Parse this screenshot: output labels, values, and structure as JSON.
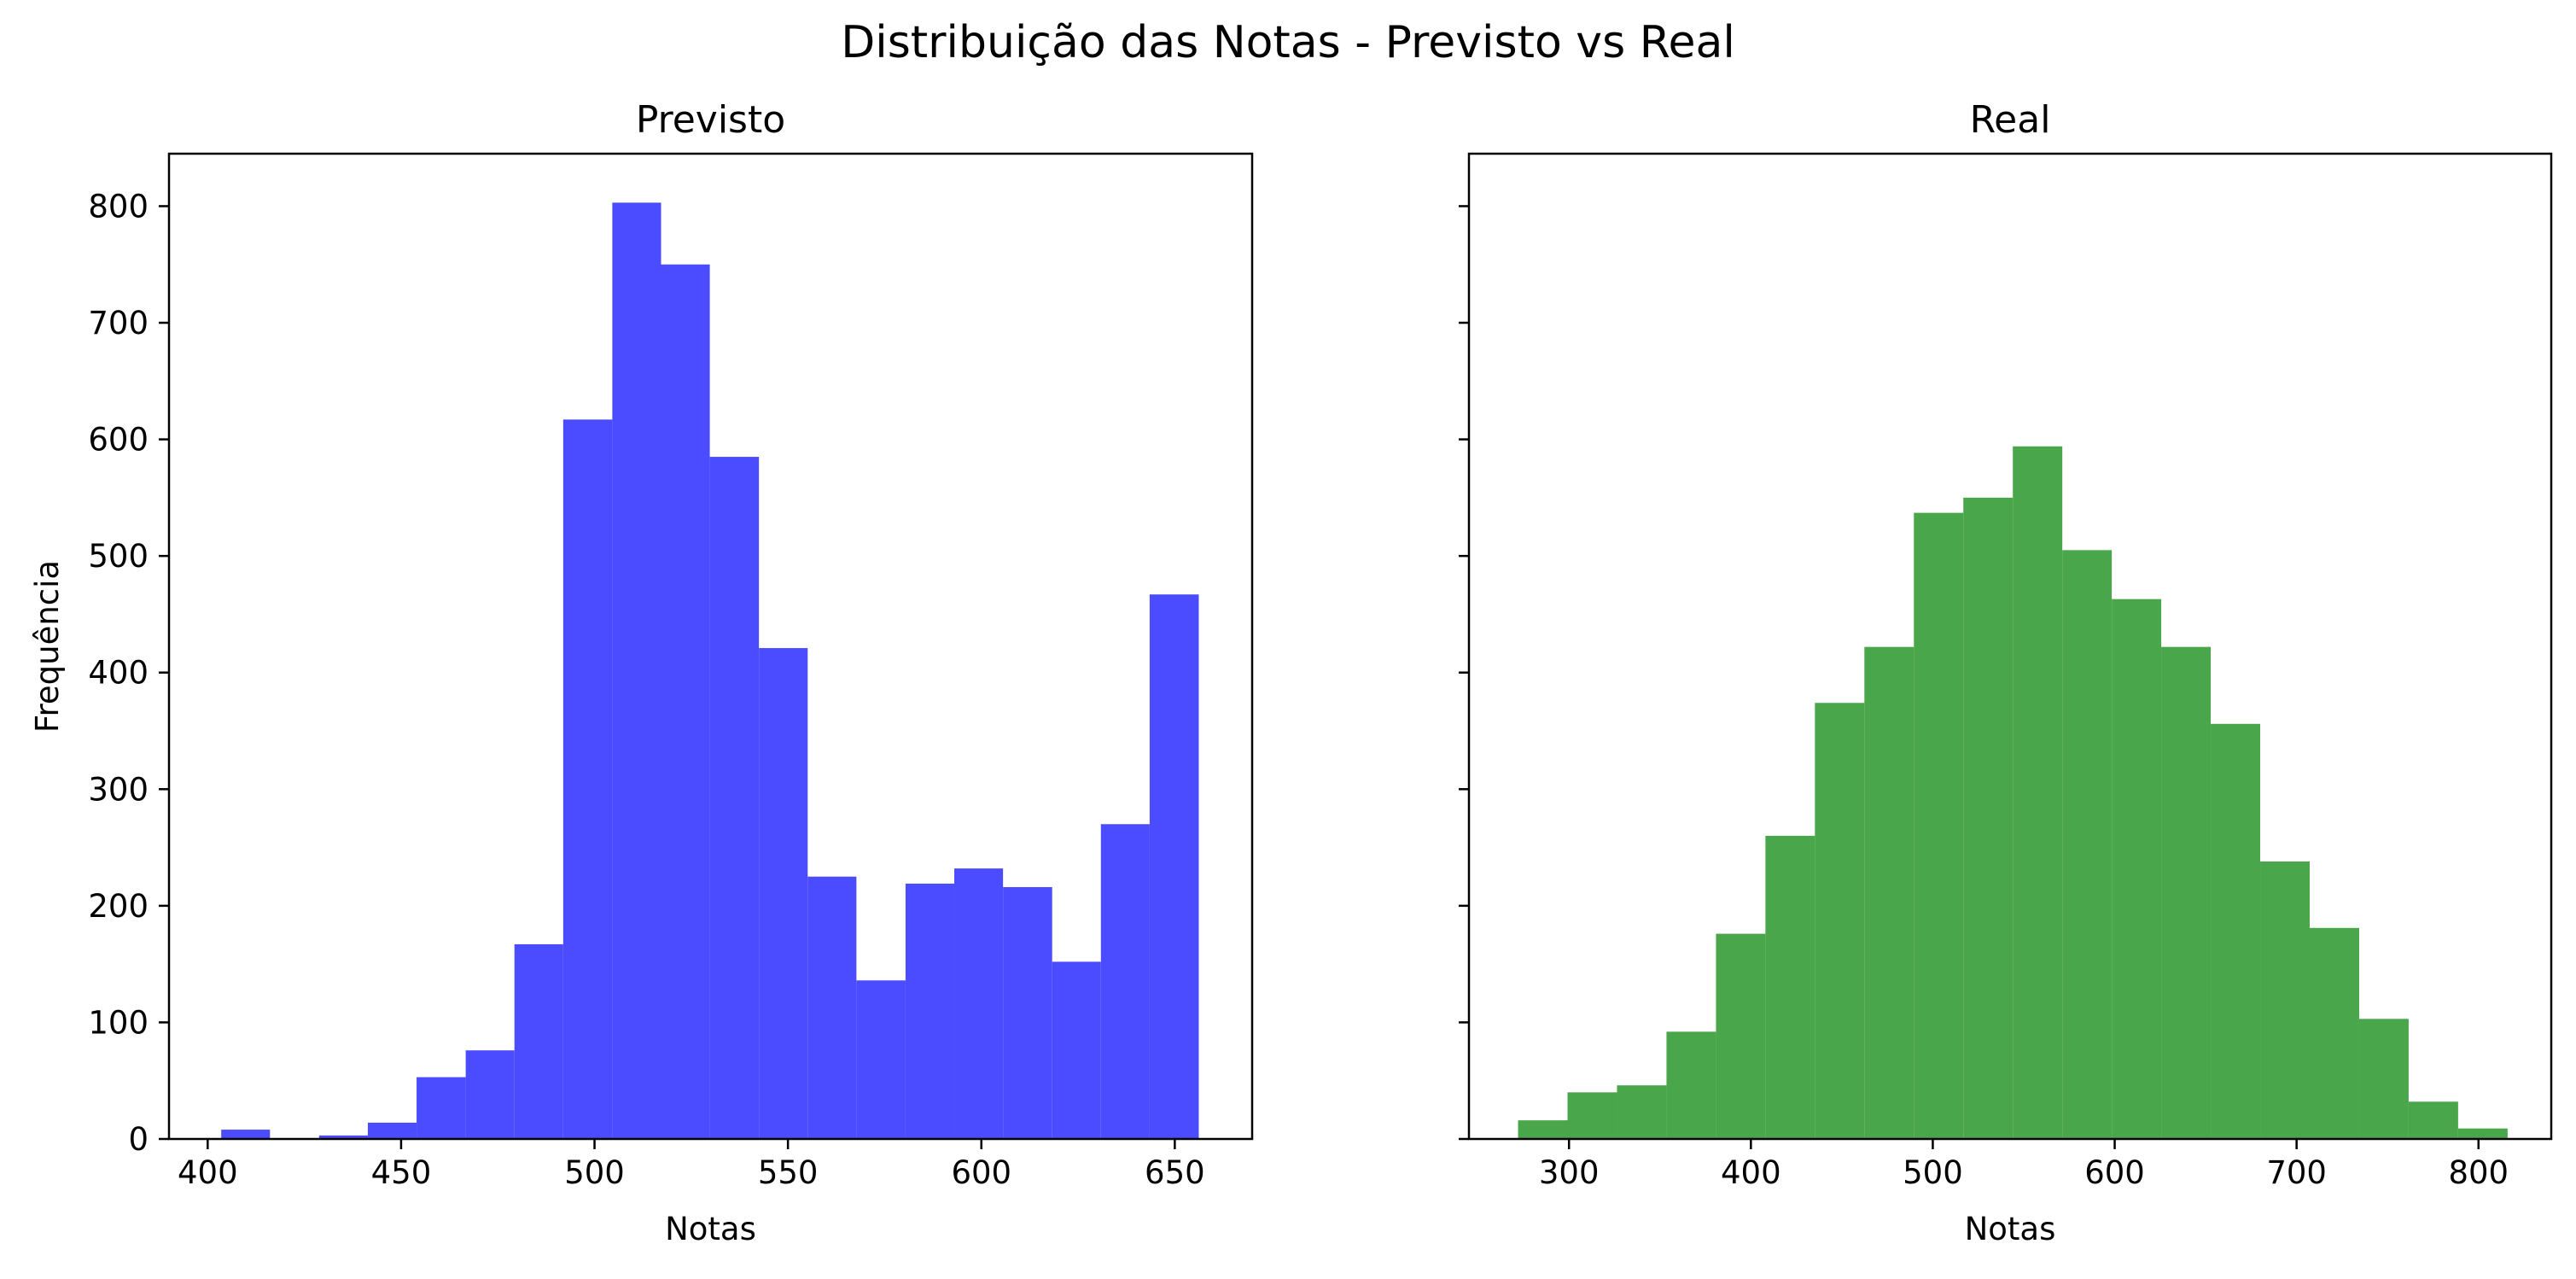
{
  "figure": {
    "title": "Distribuição das Notas - Previsto vs Real"
  },
  "chart_data": [
    {
      "type": "bar",
      "title": "Previsto",
      "xlabel": "Notas",
      "ylabel": "Frequência",
      "xlim": [
        390,
        670
      ],
      "ylim": [
        0,
        845
      ],
      "xticks": [
        400,
        450,
        500,
        550,
        600,
        650
      ],
      "yticks": [
        0,
        100,
        200,
        300,
        400,
        500,
        600,
        700,
        800
      ],
      "color": "#4b4bff",
      "bins": [
        {
          "x0": 403.5,
          "x1": 416.1,
          "value": 8
        },
        {
          "x0": 416.1,
          "x1": 428.8,
          "value": 0
        },
        {
          "x0": 428.8,
          "x1": 441.4,
          "value": 3
        },
        {
          "x0": 441.4,
          "x1": 454.0,
          "value": 14
        },
        {
          "x0": 454.0,
          "x1": 466.7,
          "value": 53
        },
        {
          "x0": 466.7,
          "x1": 479.3,
          "value": 76
        },
        {
          "x0": 479.3,
          "x1": 491.9,
          "value": 167
        },
        {
          "x0": 491.9,
          "x1": 504.6,
          "value": 617
        },
        {
          "x0": 504.6,
          "x1": 517.2,
          "value": 803
        },
        {
          "x0": 517.2,
          "x1": 529.8,
          "value": 750
        },
        {
          "x0": 529.8,
          "x1": 542.5,
          "value": 585
        },
        {
          "x0": 542.5,
          "x1": 555.1,
          "value": 421
        },
        {
          "x0": 555.1,
          "x1": 567.7,
          "value": 225
        },
        {
          "x0": 567.7,
          "x1": 580.4,
          "value": 136
        },
        {
          "x0": 580.4,
          "x1": 593.0,
          "value": 219
        },
        {
          "x0": 593.0,
          "x1": 605.6,
          "value": 232
        },
        {
          "x0": 605.6,
          "x1": 618.3,
          "value": 216
        },
        {
          "x0": 618.3,
          "x1": 630.9,
          "value": 152
        },
        {
          "x0": 630.9,
          "x1": 643.5,
          "value": 270
        },
        {
          "x0": 643.5,
          "x1": 656.2,
          "value": 467
        }
      ]
    },
    {
      "type": "bar",
      "title": "Real",
      "xlabel": "Notas",
      "ylabel": "",
      "xlim": [
        245,
        840
      ],
      "ylim": [
        0,
        845
      ],
      "xticks": [
        300,
        400,
        500,
        600,
        700,
        800
      ],
      "yticks": [
        0,
        100,
        200,
        300,
        400,
        500,
        600,
        700,
        800
      ],
      "color": "#4aa64a",
      "bins": [
        {
          "x0": 272.0,
          "x1": 299.2,
          "value": 16
        },
        {
          "x0": 299.2,
          "x1": 326.4,
          "value": 40
        },
        {
          "x0": 326.4,
          "x1": 353.6,
          "value": 46
        },
        {
          "x0": 353.6,
          "x1": 380.8,
          "value": 92
        },
        {
          "x0": 380.8,
          "x1": 408.0,
          "value": 176
        },
        {
          "x0": 408.0,
          "x1": 435.2,
          "value": 260
        },
        {
          "x0": 435.2,
          "x1": 462.4,
          "value": 374
        },
        {
          "x0": 462.4,
          "x1": 489.6,
          "value": 422
        },
        {
          "x0": 489.6,
          "x1": 516.8,
          "value": 537
        },
        {
          "x0": 516.8,
          "x1": 544.0,
          "value": 550
        },
        {
          "x0": 544.0,
          "x1": 571.2,
          "value": 594
        },
        {
          "x0": 571.2,
          "x1": 598.4,
          "value": 505
        },
        {
          "x0": 598.4,
          "x1": 625.6,
          "value": 463
        },
        {
          "x0": 625.6,
          "x1": 652.8,
          "value": 422
        },
        {
          "x0": 652.8,
          "x1": 680.0,
          "value": 356
        },
        {
          "x0": 680.0,
          "x1": 707.2,
          "value": 238
        },
        {
          "x0": 707.2,
          "x1": 734.4,
          "value": 181
        },
        {
          "x0": 734.4,
          "x1": 761.6,
          "value": 103
        },
        {
          "x0": 761.6,
          "x1": 788.8,
          "value": 32
        },
        {
          "x0": 788.8,
          "x1": 816.0,
          "value": 9
        }
      ]
    }
  ]
}
